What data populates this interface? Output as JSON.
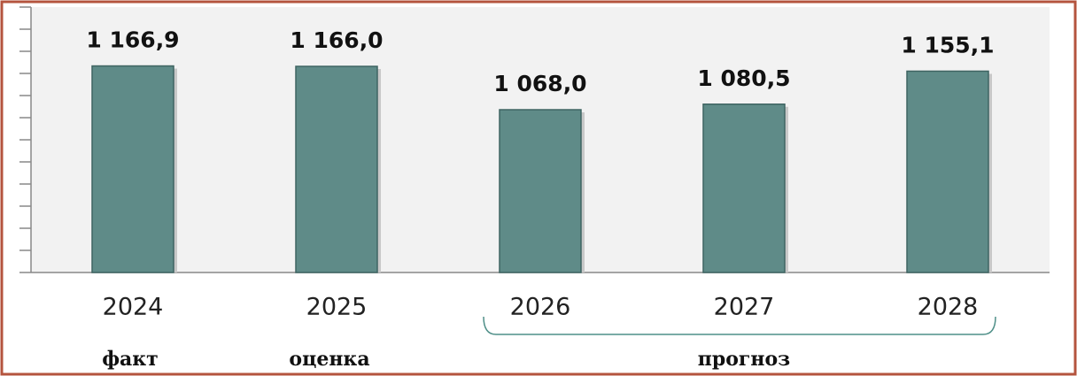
{
  "chart_data": {
    "type": "bar",
    "categories": [
      "2024",
      "2025",
      "2026",
      "2027",
      "2028"
    ],
    "values": [
      1166.9,
      1166.0,
      1068.0,
      1080.5,
      1155.1
    ],
    "value_labels": [
      "1 166,9",
      "1 166,0",
      "1 068,0",
      "1 080,5",
      "1 155,1"
    ],
    "color": "#5f8b88",
    "ylim": [
      700,
      1300
    ],
    "yticks": [
      700,
      750,
      800,
      850,
      900,
      950,
      1000,
      1050,
      1100,
      1150,
      1200,
      1250,
      1300
    ],
    "annotations": [
      "факт",
      "оценка",
      "прогноз"
    ]
  }
}
